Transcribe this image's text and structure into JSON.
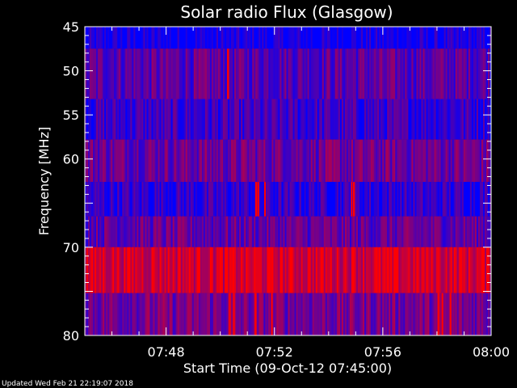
{
  "chart_data": {
    "type": "heatmap",
    "title": "Solar radio Flux (Glasgow)",
    "xlabel": "Start Time (09-Oct-12 07:45:00)",
    "ylabel": "Frequency [MHz]",
    "x_range": [
      "07:45",
      "08:00"
    ],
    "y_range": [
      45,
      80
    ],
    "x_ticks": [
      {
        "label": "07:48",
        "minutes": 3
      },
      {
        "label": "07:52",
        "minutes": 7
      },
      {
        "label": "07:56",
        "minutes": 11
      },
      {
        "label": "08:00",
        "minutes": 15
      }
    ],
    "y_ticks": [
      45,
      50,
      55,
      60,
      70,
      80
    ],
    "bands": [
      {
        "from": 45.0,
        "to": 47.5,
        "level": 0.05
      },
      {
        "from": 47.5,
        "to": 53.2,
        "level": 0.35
      },
      {
        "from": 53.2,
        "to": 57.8,
        "level": 0.22
      },
      {
        "from": 57.8,
        "to": 62.6,
        "level": 0.42
      },
      {
        "from": 62.6,
        "to": 66.5,
        "level": 0.18
      },
      {
        "from": 66.5,
        "to": 70.0,
        "level": 0.38
      },
      {
        "from": 70.0,
        "to": 75.2,
        "level": 0.82
      },
      {
        "from": 75.2,
        "to": 80.0,
        "level": 0.45
      }
    ],
    "bursts": [
      {
        "minute": 5.28,
        "from": 47.5,
        "to": 53.2
      },
      {
        "minute": 6.32,
        "from": 62.6,
        "to": 66.5
      },
      {
        "minute": 6.4,
        "from": 62.6,
        "to": 66.5
      },
      {
        "minute": 6.65,
        "from": 62.6,
        "to": 66.5
      },
      {
        "minute": 9.85,
        "from": 62.6,
        "to": 66.5
      },
      {
        "minute": 9.93,
        "from": 62.6,
        "to": 66.5
      },
      {
        "minute": 5.35,
        "from": 75.2,
        "to": 80.0
      },
      {
        "minute": 5.5,
        "from": 75.2,
        "to": 80.0
      },
      {
        "minute": 6.3,
        "from": 75.2,
        "to": 80.0
      },
      {
        "minute": 6.9,
        "from": 75.2,
        "to": 80.0
      },
      {
        "minute": 13.05,
        "from": 75.2,
        "to": 80.0
      },
      {
        "minute": 13.2,
        "from": 75.2,
        "to": 80.0
      },
      {
        "minute": 13.5,
        "from": 75.2,
        "to": 80.0
      }
    ],
    "colors": {
      "low": "#0000ff",
      "high": "#ff0000",
      "background": "#000000",
      "foreground": "#ffffff"
    }
  },
  "footer": {
    "updated": "Updated Wed Feb 21 22:19:07 2018"
  }
}
